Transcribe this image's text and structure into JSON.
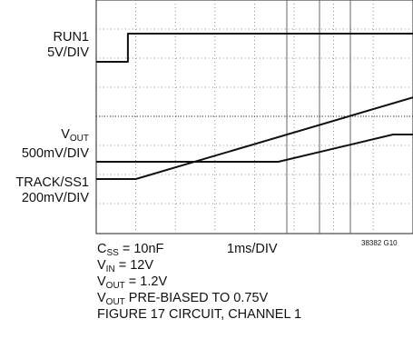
{
  "chart_data": {
    "type": "line",
    "title": "",
    "xlabel": "1ms/DIV",
    "time_per_div_ms": 1,
    "grid": true,
    "figure_code": "38382 G10",
    "channels": [
      {
        "name": "RUN1",
        "scale": "5V/DIV",
        "points_ms": [
          [
            0.0,
            0.0
          ],
          [
            0.8,
            0.0
          ],
          [
            0.8,
            5.0
          ],
          [
            9.5,
            5.0
          ]
        ]
      },
      {
        "name_main": "V",
        "name_sub": "OUT",
        "scale": "500mV/DIV",
        "points_ms": [
          [
            0.0,
            0.75
          ],
          [
            4.6,
            0.75
          ],
          [
            7.5,
            1.2
          ],
          [
            9.5,
            1.2
          ]
        ]
      },
      {
        "name": "TRACK/SS1",
        "scale": "200mV/DIV",
        "points_ms": [
          [
            0.0,
            0.0
          ],
          [
            1.0,
            0.0
          ],
          [
            9.5,
            1.0
          ]
        ]
      }
    ],
    "conditions": [
      {
        "main": "C",
        "sub": "SS",
        "rest": " = 10nF"
      },
      {
        "main": "V",
        "sub": "IN",
        "rest": " = 12V"
      },
      {
        "main": "V",
        "sub": "OUT",
        "rest": " = 1.2V"
      },
      {
        "main": "V",
        "sub": "OUT",
        "rest": " PRE-BIASED TO 0.75V"
      },
      {
        "main": "",
        "sub": "",
        "rest": "FIGURE 17 CIRCUIT, CHANNEL 1"
      }
    ]
  }
}
